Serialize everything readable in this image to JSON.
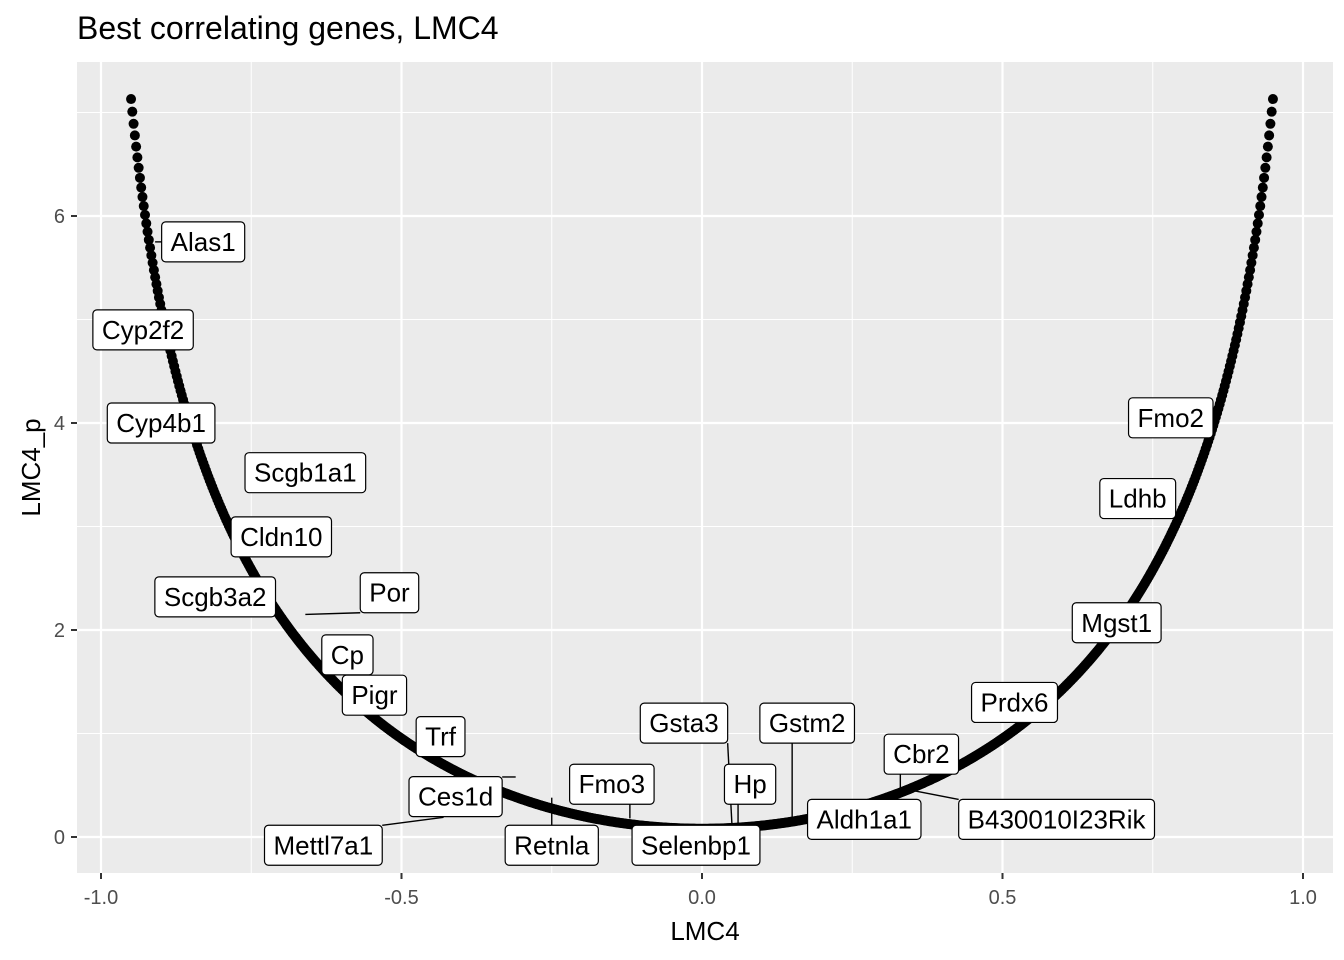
{
  "chart_data": {
    "type": "scatter",
    "title": "Best correlating genes, LMC4",
    "xlabel": "LMC4",
    "ylabel": "LMC4_p",
    "xlim": [
      -1.0,
      1.0
    ],
    "ylim": [
      -0.3,
      7.3
    ],
    "xticks": [
      -1.0,
      -0.5,
      0.0,
      0.5,
      1.0
    ],
    "xtick_labels": [
      "-1.0",
      "-0.5",
      "0.0",
      "0.5",
      "1.0"
    ],
    "yticks": [
      0,
      2,
      4,
      6
    ],
    "ytick_labels": [
      "0",
      "2",
      "4",
      "6"
    ],
    "grid": true,
    "background": "#ebebeb",
    "grid_color": "#ffffff",
    "point_color": "#000000",
    "curve": {
      "x_min": -0.95,
      "x_max": 0.95,
      "y_at_min": 7.13,
      "y_at_max": 7.13,
      "y_at_zero": 0.08
    },
    "labels": [
      {
        "gene": "Alas1",
        "x": -0.91,
        "y": 5.75,
        "label_x": -0.83,
        "label_y": 5.75
      },
      {
        "gene": "Cyp2f2",
        "x": -0.9,
        "y": 4.9,
        "label_x": -0.93,
        "label_y": 4.9
      },
      {
        "gene": "Cyp4b1",
        "x": -0.85,
        "y": 4.0,
        "label_x": -0.9,
        "label_y": 4.0
      },
      {
        "gene": "Scgb1a1",
        "x": -0.76,
        "y": 3.45,
        "label_x": -0.66,
        "label_y": 3.52
      },
      {
        "gene": "Cldn10",
        "x": -0.74,
        "y": 2.9,
        "label_x": -0.7,
        "label_y": 2.9
      },
      {
        "gene": "Scgb3a2",
        "x": -0.7,
        "y": 2.32,
        "label_x": -0.81,
        "label_y": 2.32
      },
      {
        "gene": "Por",
        "x": -0.66,
        "y": 2.15,
        "label_x": -0.52,
        "label_y": 2.36
      },
      {
        "gene": "Cp",
        "x": -0.59,
        "y": 1.76,
        "label_x": -0.59,
        "label_y": 1.76
      },
      {
        "gene": "Pigr",
        "x": -0.53,
        "y": 1.37,
        "label_x": -0.545,
        "label_y": 1.37
      },
      {
        "gene": "Trf",
        "x": -0.44,
        "y": 0.97,
        "label_x": -0.435,
        "label_y": 0.97
      },
      {
        "gene": "Ces1d",
        "x": -0.31,
        "y": 0.58,
        "label_x": -0.41,
        "label_y": 0.39
      },
      {
        "gene": "Mettl7a1",
        "x": -0.43,
        "y": 0.19,
        "label_x": -0.63,
        "label_y": -0.08
      },
      {
        "gene": "Retnla",
        "x": -0.25,
        "y": 0.38,
        "label_x": -0.25,
        "label_y": -0.08
      },
      {
        "gene": "Fmo3",
        "x": -0.12,
        "y": 0.18,
        "label_x": -0.15,
        "label_y": 0.51
      },
      {
        "gene": "Selenbp1",
        "x": -0.05,
        "y": 0.12,
        "label_x": -0.01,
        "label_y": -0.08
      },
      {
        "gene": "Gsta3",
        "x": 0.05,
        "y": 0.1,
        "label_x": -0.03,
        "label_y": 1.1
      },
      {
        "gene": "Hp",
        "x": 0.06,
        "y": 0.1,
        "label_x": 0.08,
        "label_y": 0.51
      },
      {
        "gene": "Gstm2",
        "x": 0.15,
        "y": 0.15,
        "label_x": 0.175,
        "label_y": 1.1
      },
      {
        "gene": "Aldh1a1",
        "x": 0.17,
        "y": 0.2,
        "label_x": 0.27,
        "label_y": 0.17
      },
      {
        "gene": "Cbr2",
        "x": 0.33,
        "y": 0.4,
        "label_x": 0.365,
        "label_y": 0.8
      },
      {
        "gene": "B430010I23Rik",
        "x": 0.35,
        "y": 0.45,
        "label_x": 0.59,
        "label_y": 0.17
      },
      {
        "gene": "Prdx6",
        "x": 0.52,
        "y": 1.3,
        "label_x": 0.52,
        "label_y": 1.3
      },
      {
        "gene": "Mgst1",
        "x": 0.69,
        "y": 2.07,
        "label_x": 0.69,
        "label_y": 2.07
      },
      {
        "gene": "Ldhb",
        "x": 0.76,
        "y": 3.25,
        "label_x": 0.725,
        "label_y": 3.27
      },
      {
        "gene": "Fmo2",
        "x": 0.82,
        "y": 4.05,
        "label_x": 0.78,
        "label_y": 4.05
      }
    ]
  }
}
